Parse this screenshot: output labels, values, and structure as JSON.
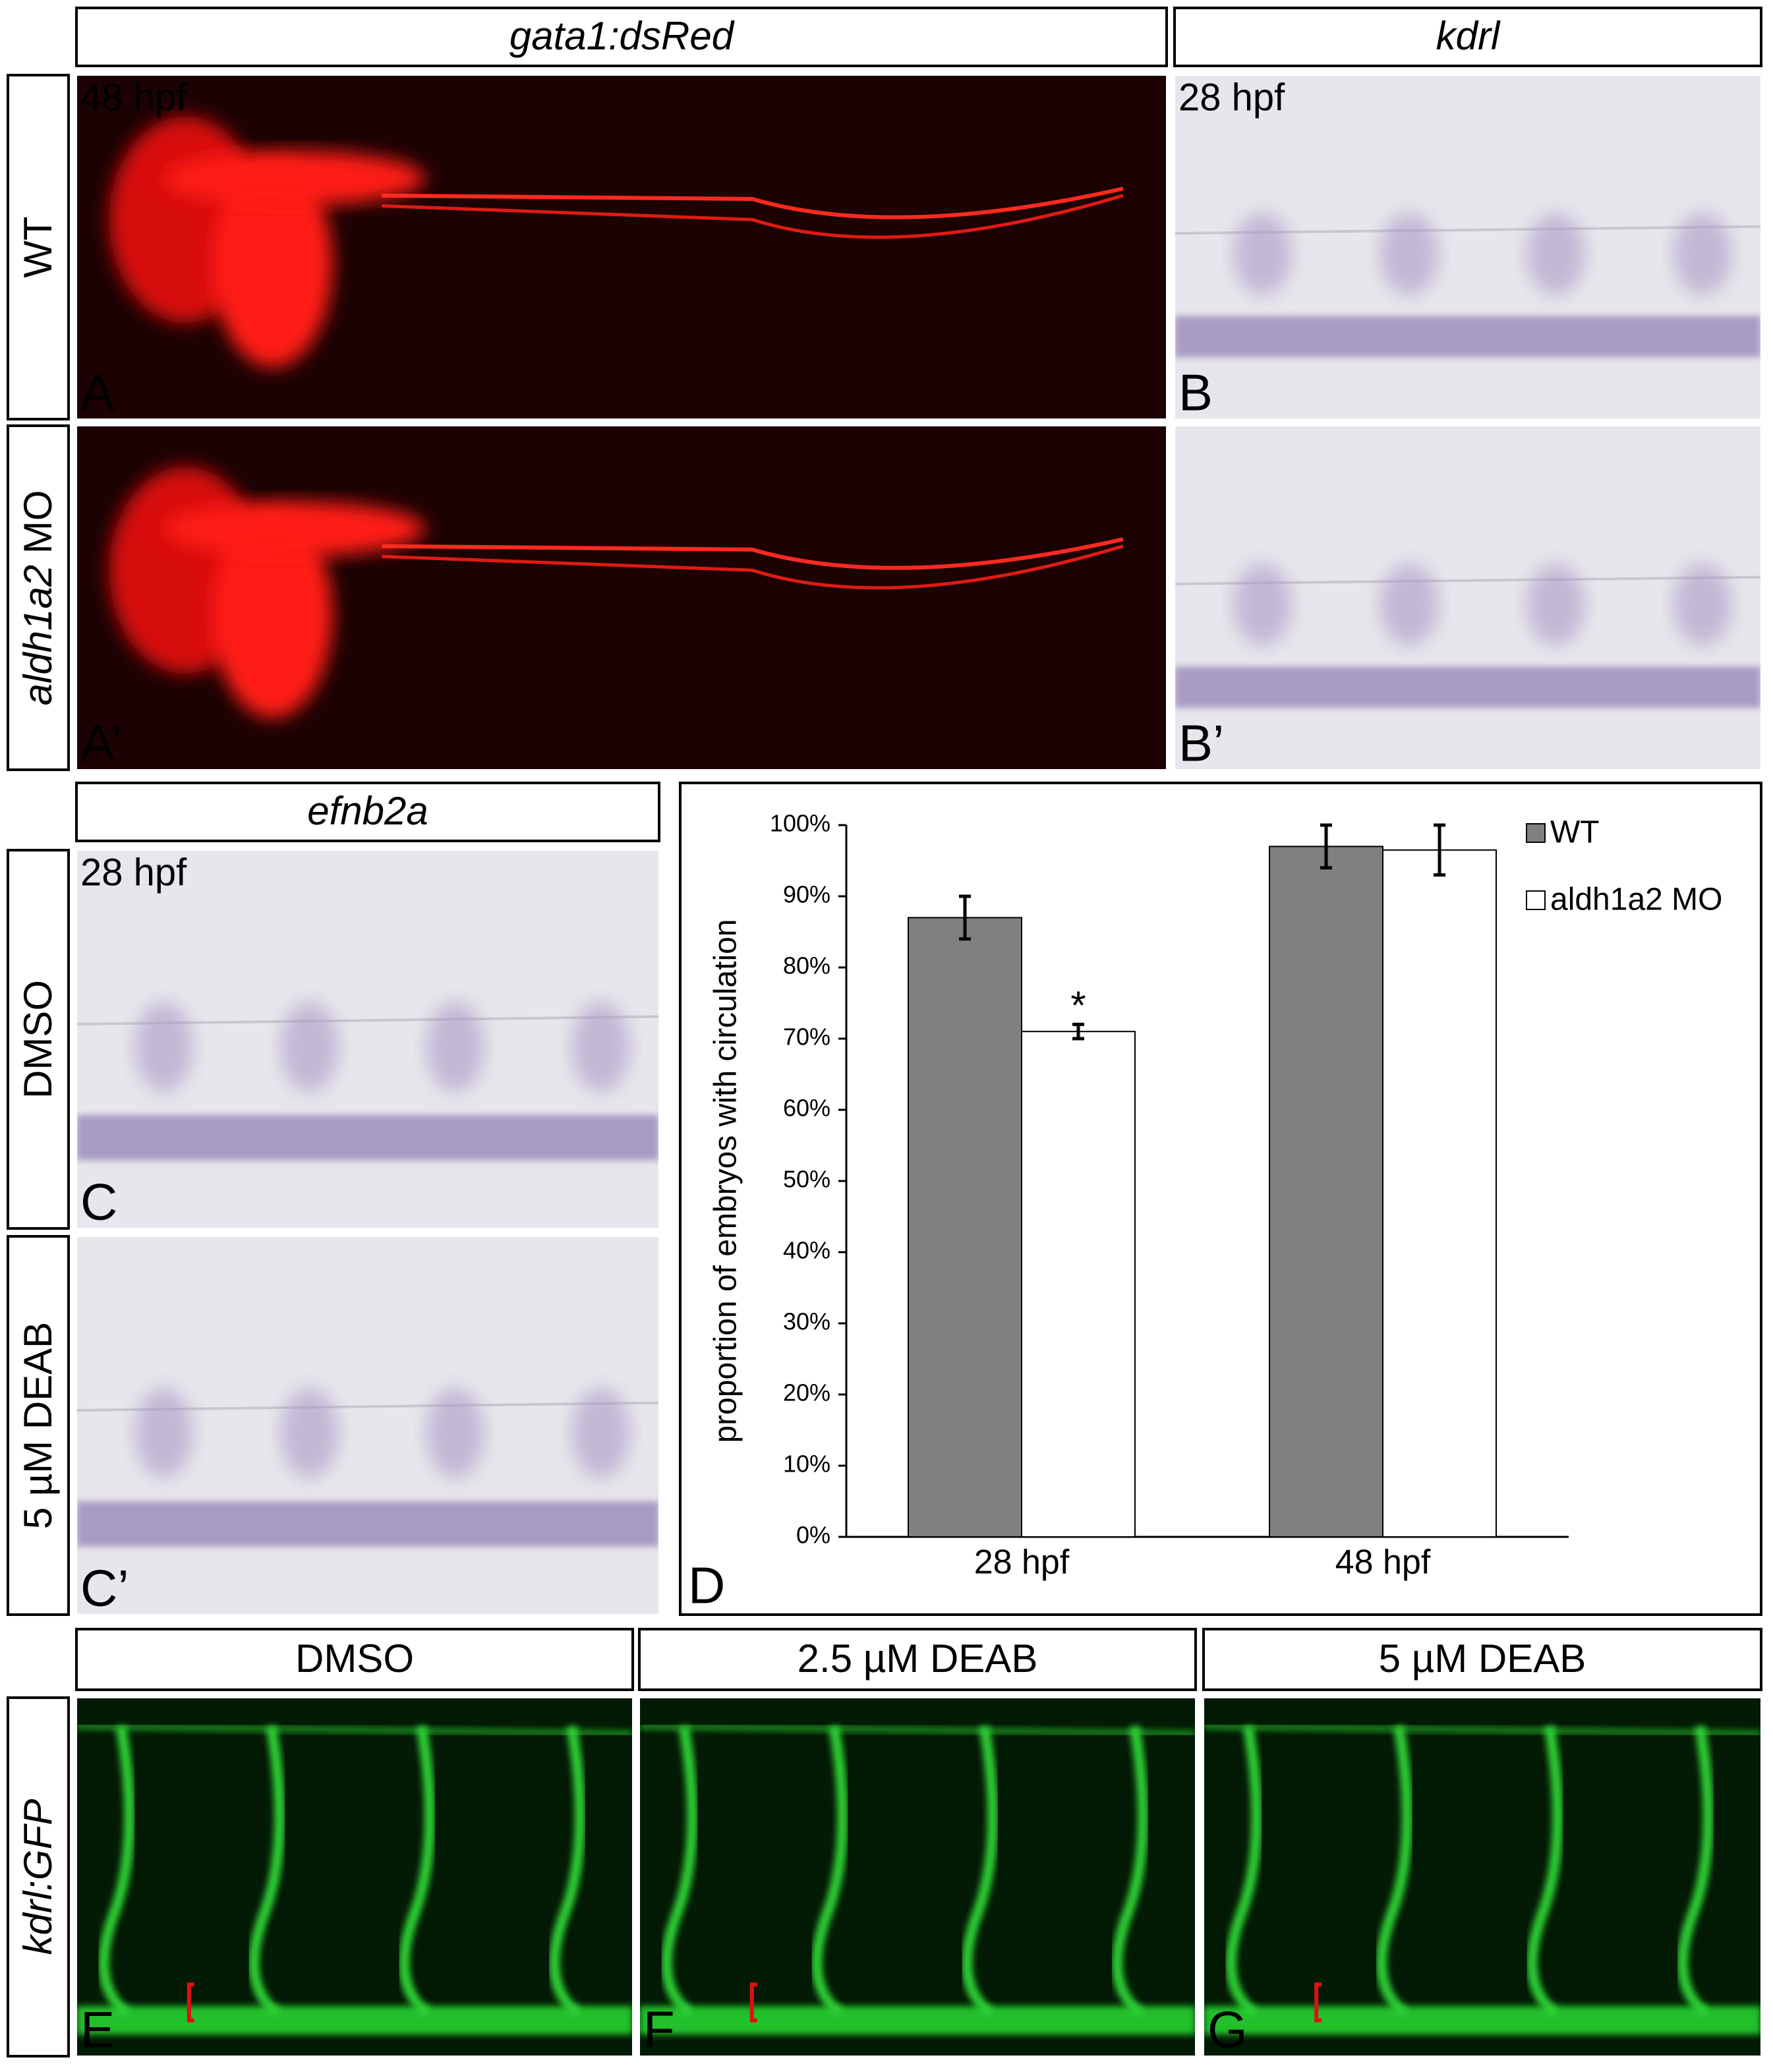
{
  "headers": [
    "gata1:dsRed",
    "kdrl",
    "efnb2a",
    "DMSO",
    "2.5 µM DEAB",
    "5 µM DEAB"
  ],
  "side_labels": [
    "WT",
    {
      "italic": "aldh1a2",
      "plain": "MO"
    },
    "DMSO",
    "5 µM DEAB",
    "kdrl:GFP"
  ],
  "panels": [
    {
      "label": "A",
      "stage": "48 hpf"
    },
    {
      "label": "A’"
    },
    {
      "label": "B",
      "stage": "28 hpf"
    },
    {
      "label": "B’"
    },
    {
      "label": "C",
      "stage": "28 hpf"
    },
    {
      "label": "C’"
    },
    {
      "label": "E"
    },
    {
      "label": "F"
    },
    {
      "label": "G"
    }
  ],
  "chart_label": "D",
  "chart_data": {
    "type": "bar",
    "y_label": "proportion of embryos with circulation",
    "categories": [
      "28 hpf",
      "48 hpf"
    ],
    "series": [
      {
        "name": "WT",
        "color": "#808080",
        "values": [
          87,
          97
        ],
        "errors": [
          3,
          3
        ]
      },
      {
        "name": "aldh1a2 MO",
        "color": "#ffffff",
        "values": [
          71,
          96.5
        ],
        "errors": [
          1,
          3.5
        ]
      }
    ],
    "annotations": [
      {
        "text": "*",
        "series": 1,
        "category": 0
      }
    ],
    "ylim": [
      0,
      100
    ],
    "yticks": [
      {
        "value": 0,
        "label": "0%"
      },
      {
        "value": 10,
        "label": "10%"
      },
      {
        "value": 20,
        "label": "20%"
      },
      {
        "value": 30,
        "label": "30%"
      },
      {
        "value": 40,
        "label": "40%"
      },
      {
        "value": 50,
        "label": "50%"
      },
      {
        "value": 60,
        "label": "60%"
      },
      {
        "value": 70,
        "label": "70%"
      },
      {
        "value": 80,
        "label": "80%"
      },
      {
        "value": 90,
        "label": "90%"
      },
      {
        "value": 100,
        "label": "100%"
      }
    ],
    "grid": false
  }
}
